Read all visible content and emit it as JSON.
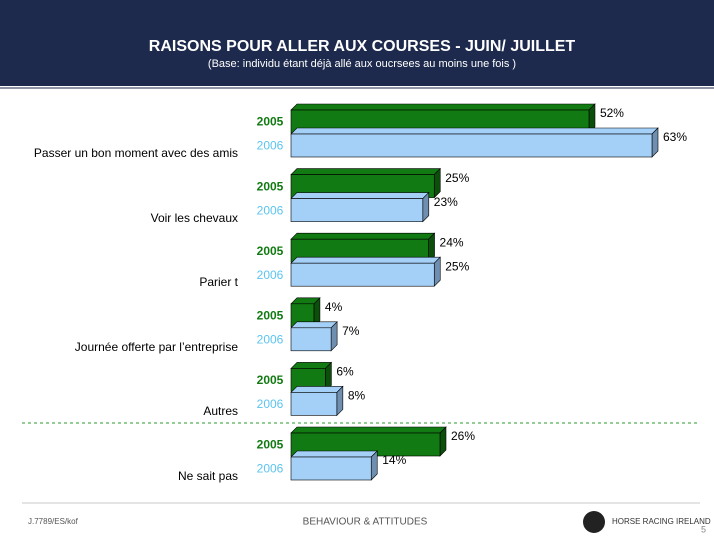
{
  "chart_data": {
    "type": "bar",
    "orientation": "horizontal",
    "title": "RAISONS POUR ALLER AUX COURSES - JUIN/ JUILLET",
    "subtitle": "(Base: individu étant déjà allé aux oucrsees au moins une fois )",
    "categories": [
      "Passer un bon moment avec des amis",
      "Voir les chevaux",
      "Parier t",
      "Journée offerte par l’entreprise",
      "Autres",
      "Ne sait pas"
    ],
    "series": [
      {
        "name": "2005",
        "color": "#127a12",
        "label_color": "#127a12",
        "values": [
          52,
          25,
          24,
          4,
          6,
          26
        ],
        "value_labels": [
          "52%",
          "25%",
          "24%",
          "4%",
          "6%",
          "26%"
        ]
      },
      {
        "name": "2006",
        "color": "#a4d0f8",
        "label_color": "#5bc4f0",
        "values": [
          63,
          23,
          25,
          7,
          8,
          14
        ],
        "value_labels": [
          "63%",
          "23%",
          "25%",
          "7%",
          "8%",
          "14%"
        ]
      }
    ]
  },
  "footer": {
    "reference": "J.7789/ES/kof",
    "logo_left": "BEHAVIOUR & ATTITUDES",
    "logo_right": "HORSE RACING IRELAND",
    "page": "5"
  }
}
